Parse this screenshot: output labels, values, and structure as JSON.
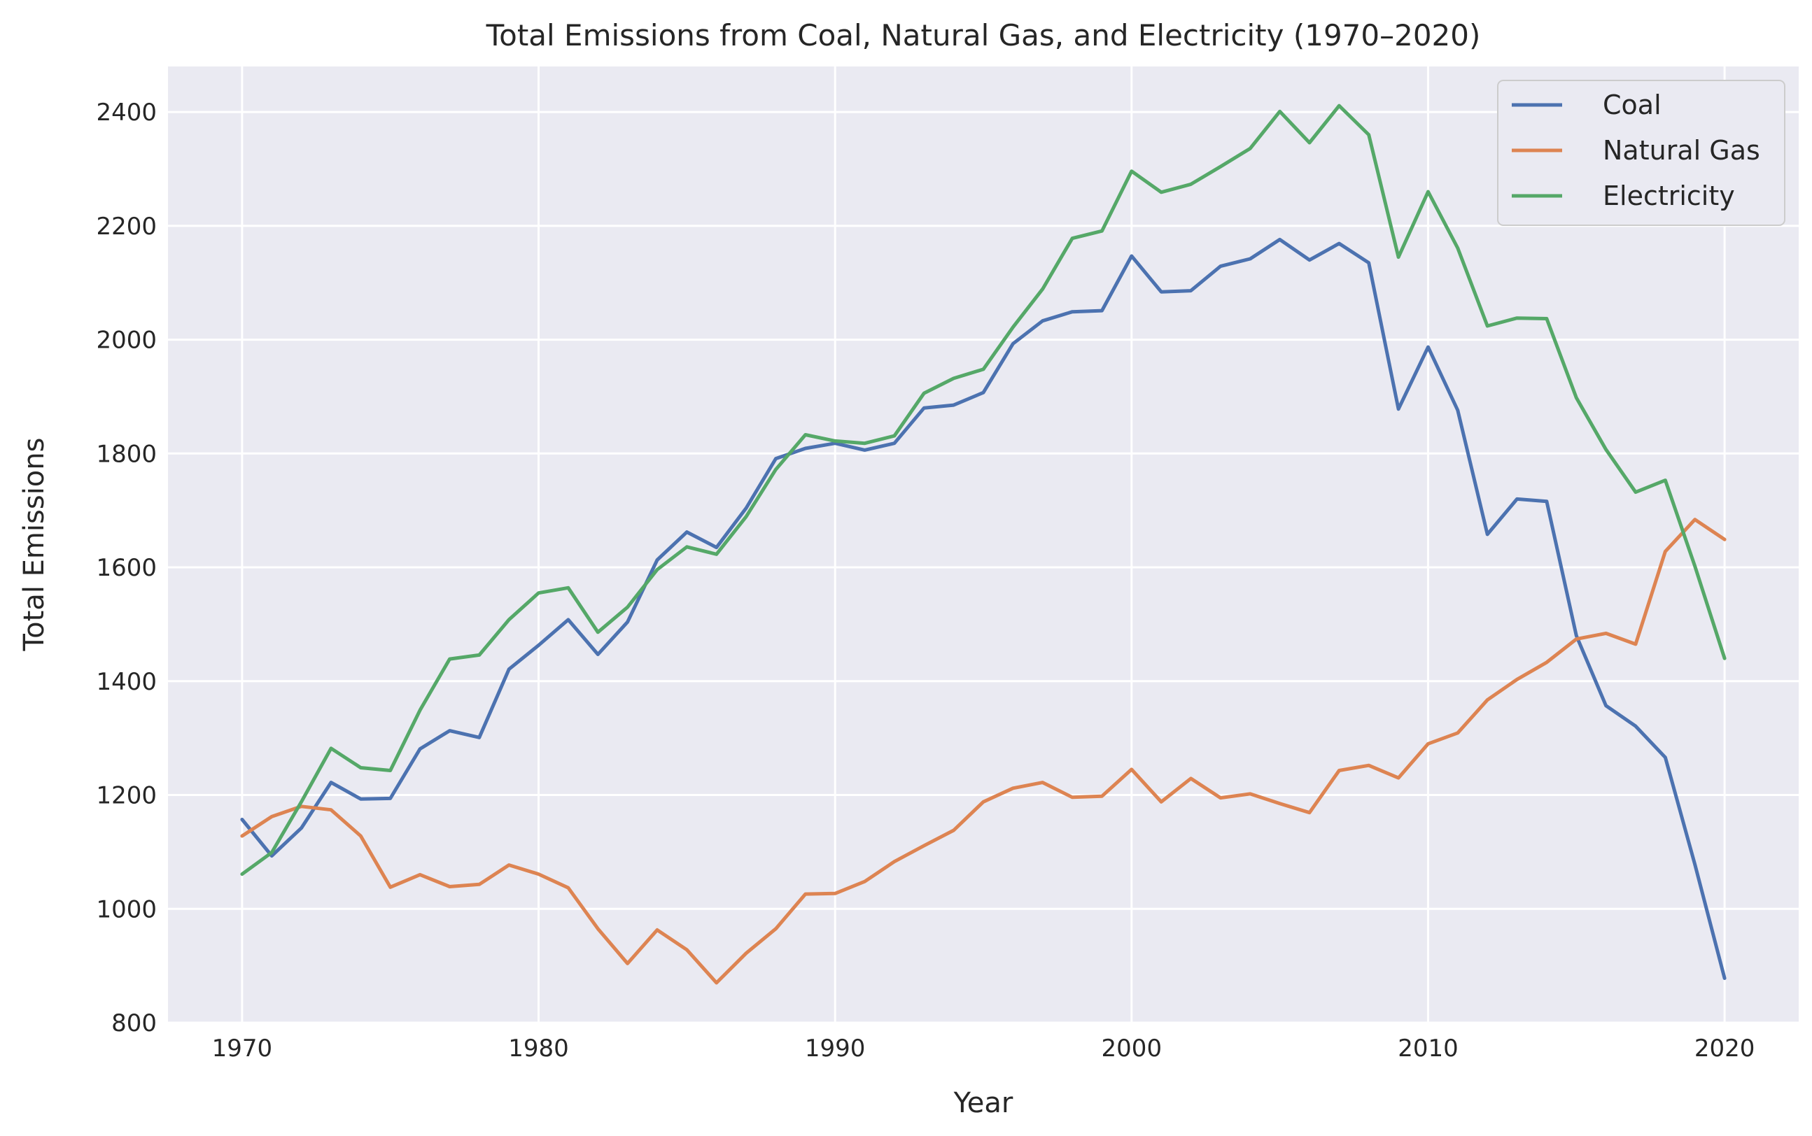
{
  "chart_data": {
    "type": "line",
    "title": "Total Emissions from Coal, Natural Gas, and Electricity (1970–2020)",
    "xlabel": "Year",
    "ylabel": "Total Emissions",
    "xlim": [
      1967.5,
      2022.5
    ],
    "ylim": [
      800,
      2480
    ],
    "xticks": [
      1970,
      1980,
      1990,
      2000,
      2010,
      2020
    ],
    "yticks": [
      800,
      1000,
      1200,
      1400,
      1600,
      1800,
      2000,
      2200,
      2400
    ],
    "grid": true,
    "legend_position": "top-right",
    "x": [
      1970,
      1971,
      1972,
      1973,
      1974,
      1975,
      1976,
      1977,
      1978,
      1979,
      1980,
      1981,
      1982,
      1983,
      1984,
      1985,
      1986,
      1987,
      1988,
      1989,
      1990,
      1991,
      1992,
      1993,
      1994,
      1995,
      1996,
      1997,
      1998,
      1999,
      2000,
      2001,
      2002,
      2003,
      2004,
      2005,
      2006,
      2007,
      2008,
      2009,
      2010,
      2011,
      2012,
      2013,
      2014,
      2015,
      2016,
      2017,
      2018,
      2019,
      2020
    ],
    "series": [
      {
        "name": "Coal",
        "color": "#4c72b0",
        "values": [
          1157,
          1093,
          1142,
          1222,
          1193,
          1194,
          1281,
          1313,
          1301,
          1421,
          1463,
          1508,
          1447,
          1504,
          1613,
          1662,
          1635,
          1704,
          1791,
          1809,
          1818,
          1806,
          1818,
          1880,
          1885,
          1907,
          1993,
          2033,
          2049,
          2051,
          2147,
          2084,
          2086,
          2129,
          2142,
          2176,
          2140,
          2169,
          2135,
          1878,
          1987,
          1876,
          1658,
          1720,
          1716,
          1480,
          1357,
          1321,
          1266,
          1078,
          878
        ]
      },
      {
        "name": "Natural Gas",
        "color": "#dd8452",
        "values": [
          1128,
          1162,
          1180,
          1174,
          1128,
          1038,
          1060,
          1039,
          1043,
          1077,
          1061,
          1037,
          965,
          904,
          963,
          928,
          870,
          922,
          965,
          1026,
          1027,
          1048,
          1083,
          1111,
          1138,
          1188,
          1212,
          1222,
          1196,
          1198,
          1245,
          1188,
          1229,
          1195,
          1202,
          1185,
          1169,
          1243,
          1252,
          1230,
          1290,
          1309,
          1367,
          1403,
          1433,
          1474,
          1484,
          1465,
          1628,
          1684,
          1649
        ]
      },
      {
        "name": "Electricity",
        "color": "#55a868",
        "values": [
          1061,
          1099,
          1188,
          1282,
          1248,
          1243,
          1349,
          1439,
          1446,
          1508,
          1555,
          1564,
          1486,
          1530,
          1596,
          1636,
          1623,
          1689,
          1772,
          1833,
          1822,
          1818,
          1831,
          1906,
          1932,
          1948,
          2022,
          2089,
          2178,
          2191,
          2296,
          2259,
          2273,
          2304,
          2336,
          2401,
          2346,
          2411,
          2360,
          2145,
          2260,
          2161,
          2024,
          2038,
          2037,
          1898,
          1807,
          1732,
          1753,
          1602,
          1440
        ]
      }
    ]
  }
}
